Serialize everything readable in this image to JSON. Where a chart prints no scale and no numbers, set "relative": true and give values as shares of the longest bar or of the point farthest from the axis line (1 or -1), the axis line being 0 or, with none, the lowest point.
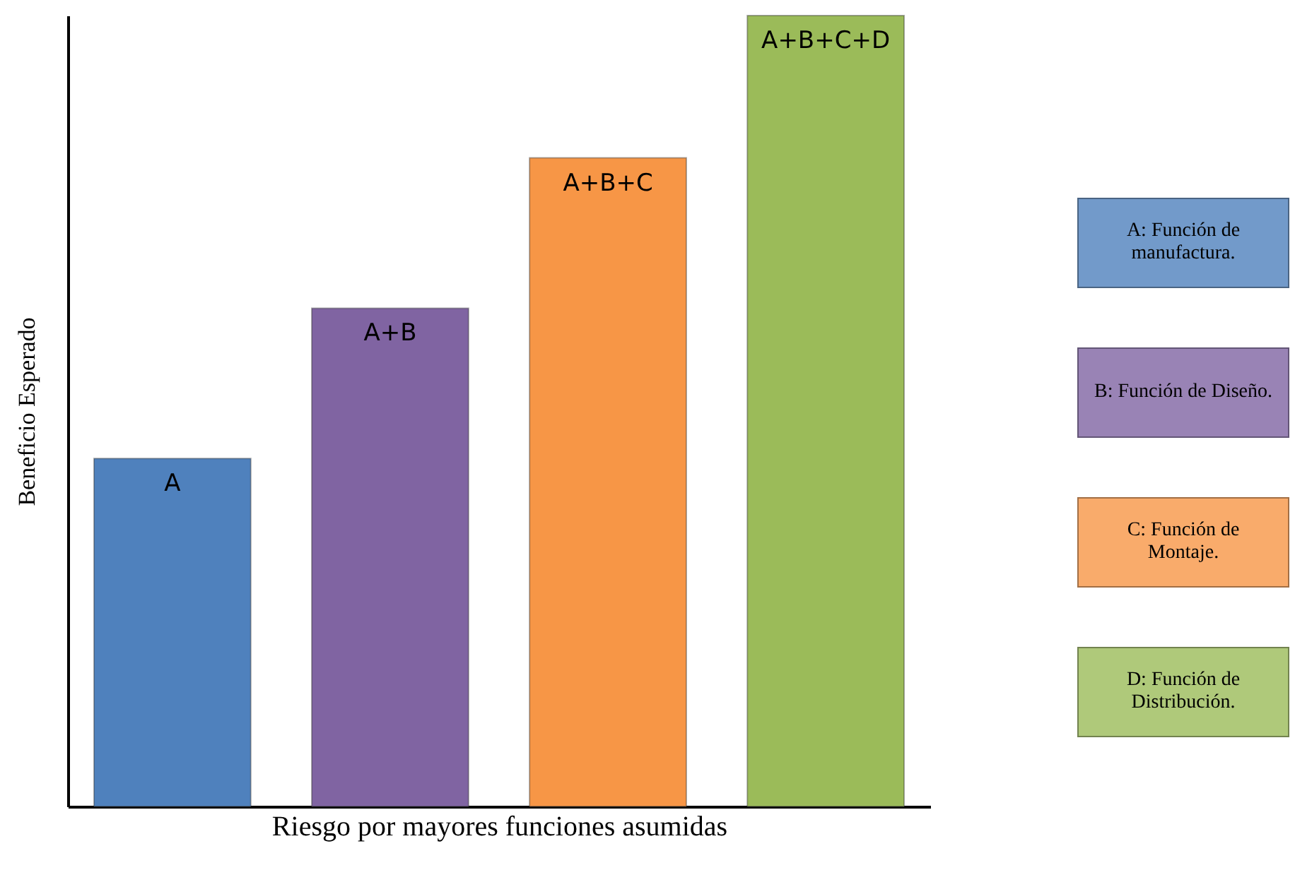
{
  "chart_data": {
    "type": "bar",
    "relative": true,
    "xlabel": "Riesgo por mayores funciones asumidas",
    "ylabel": "Beneficio Esperado",
    "categories": [
      "A",
      "A+B",
      "A+B+C",
      "A+B+C+D"
    ],
    "values": [
      0.44,
      0.63,
      0.82,
      1
    ],
    "colors": [
      "#4f81bd",
      "#8064a2",
      "#f79646",
      "#9bbb59"
    ],
    "annotations": [
      "A: Función de manufactura.",
      "B: Función de Diseño.",
      "C: Función de Montaje.",
      "D: Función de Distribución."
    ]
  }
}
